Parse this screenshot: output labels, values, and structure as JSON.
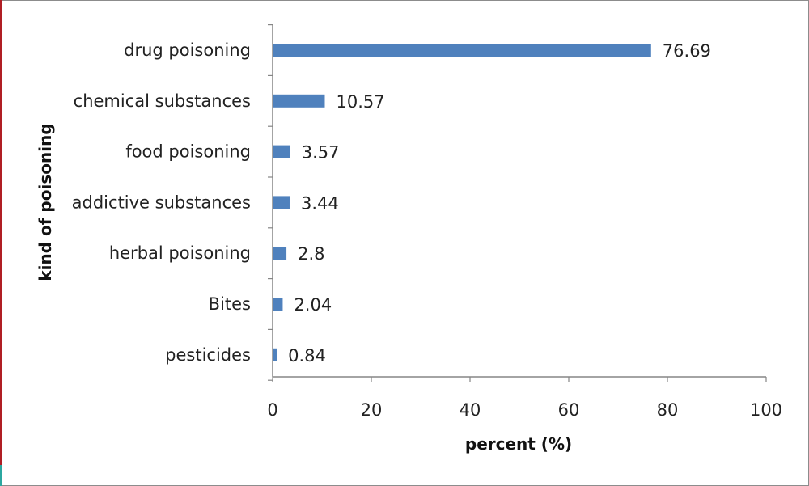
{
  "colors": {
    "bar": "#4f81bd",
    "axis": "#868686",
    "text": "#222222"
  },
  "chart_data": {
    "type": "bar",
    "orientation": "horizontal",
    "categories": [
      "drug poisoning",
      "chemical substances",
      "food poisoning",
      "addictive substances",
      "herbal poisoning",
      "Bites",
      "pesticides"
    ],
    "values": [
      76.69,
      10.57,
      3.57,
      3.44,
      2.8,
      2.04,
      0.84
    ],
    "value_labels": [
      "76.69",
      "10.57",
      "3.57",
      "3.44",
      "2.8",
      "2.04",
      "0.84"
    ],
    "xlabel": "percent (%)",
    "ylabel": "kind of poisoning",
    "xlim": [
      0,
      100
    ],
    "xticks": [
      0,
      20,
      40,
      60,
      80,
      100
    ],
    "xtick_labels": [
      "0",
      "20",
      "40",
      "60",
      "80",
      "100"
    ],
    "grid": false,
    "legend": "none"
  }
}
